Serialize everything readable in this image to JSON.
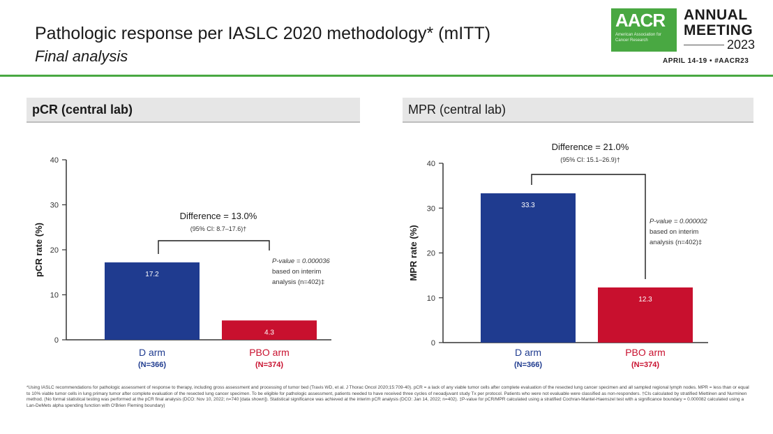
{
  "header": {
    "title": "Pathologic response per IASLC 2020 methodology* (mITT)",
    "subtitle": "Final analysis"
  },
  "logo": {
    "abbr": "AACR",
    "org": "American Association for Cancer Research",
    "line1": "ANNUAL",
    "line2": "MEETING",
    "year": "2023",
    "dates": "APRIL 14-19 • #AACR23"
  },
  "colors": {
    "d_arm": "#1f3b8f",
    "pbo_arm": "#c8102e",
    "accent": "#49a842"
  },
  "chart_data": [
    {
      "type": "bar",
      "title": "pCR (central lab)",
      "ylabel": "pCR rate (%)",
      "ylim": [
        0,
        40
      ],
      "yticks": [
        0,
        10,
        20,
        30,
        40
      ],
      "categories": [
        "D arm",
        "PBO arm"
      ],
      "category_n": [
        "(N=366)",
        "(N=374)"
      ],
      "values": [
        17.2,
        4.3
      ],
      "value_labels": [
        "17.2",
        "4.3"
      ],
      "difference_label": "Difference = 13.0%",
      "ci_label": "(95% CI: 8.7–17.6)†",
      "pvalue_lines": [
        "P-value = 0.000036",
        "based on interim",
        "analysis (n=402)‡"
      ]
    },
    {
      "type": "bar",
      "title": "MPR (central lab)",
      "ylabel": "MPR rate (%)",
      "ylim": [
        0,
        40
      ],
      "yticks": [
        0,
        10,
        20,
        30,
        40
      ],
      "categories": [
        "D arm",
        "PBO arm"
      ],
      "category_n": [
        "(N=366)",
        "(N=374)"
      ],
      "values": [
        33.3,
        12.3
      ],
      "value_labels": [
        "33.3",
        "12.3"
      ],
      "difference_label": "Difference = 21.0%",
      "ci_label": "(95% CI: 15.1–26.9)†",
      "pvalue_lines": [
        "P-value = 0.000002",
        "based on interim",
        "analysis (n=402)‡"
      ]
    }
  ],
  "footnote": "*Using IASLC recommendations for pathologic assessment of response to therapy, including gross assessment and processing of tumor bed (Travis WD, et al. J Thorac Oncol 2020;15:709-40). pCR = a lack of any viable tumor cells after complete evaluation of the resected lung cancer specimen and all sampled regional lymph nodes. MPR = less than or equal to 10% viable tumor cells in lung primary tumor after complete evaluation of the resected lung cancer specimen. To be eligible for pathologic assessment, patients needed to have received three cycles of neoadjuvant study Tx per protocol. Patients who were not evaluable were classified as non-responders. †CIs calculated by stratified Miettinen and Nurminen method. (No formal statistical testing was performed at the pCR final analysis (DCO: Nov 10, 2022; n=740 [data shown]). Statistical significance was achieved at the interim pCR analysis (DCO: Jan 14, 2022; n=402). ‡P-value for pCR/MPR calculated using a stratified Cochran-Mantel-Haenszel test with a significance boundary = 0.000082 calculated using a Lan-DeMets alpha spending function with O'Brien Fleming boundary)"
}
